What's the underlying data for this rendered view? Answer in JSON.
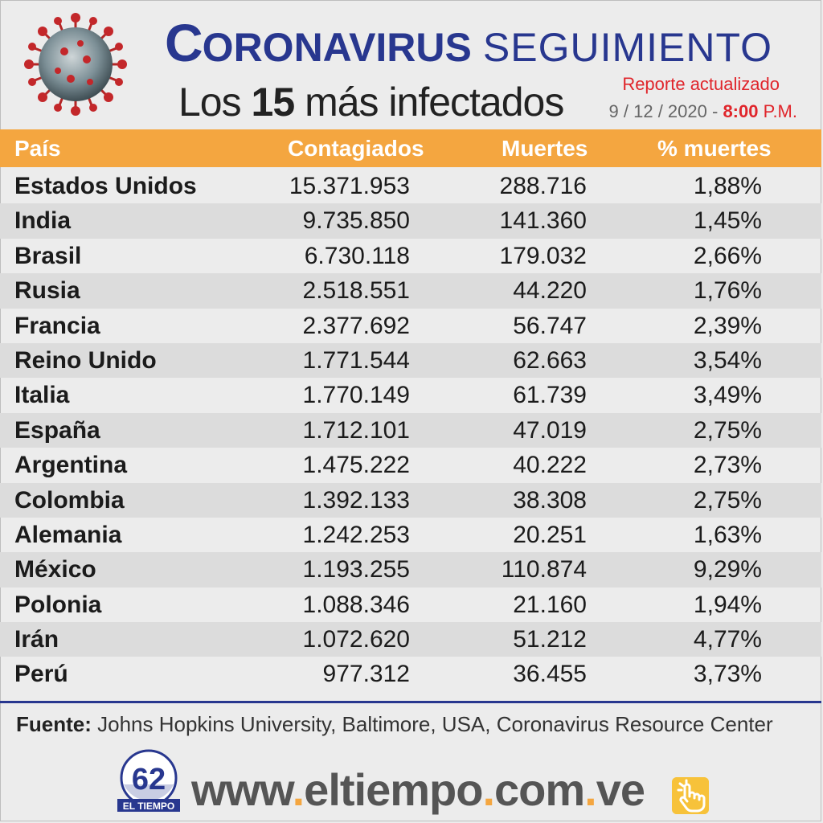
{
  "header": {
    "title_initial": "C",
    "title_rest": "ORONAVIRUS",
    "title_second": "SEGUIMIENTO",
    "subtitle_pre": "Los",
    "subtitle_num": "15",
    "subtitle_post": "más infectados",
    "report_label": "Reporte actualizado",
    "date": "9 / 12 / 2020 -",
    "time": "8:00",
    "ampm": "P.M."
  },
  "table": {
    "columns": [
      "País",
      "Contagiados",
      "Muertes",
      "% muertes"
    ],
    "rows": [
      [
        "Estados Unidos",
        "15.371.953",
        "288.716",
        "1,88%"
      ],
      [
        "India",
        "9.735.850",
        "141.360",
        "1,45%"
      ],
      [
        "Brasil",
        "6.730.118",
        "179.032",
        "2,66%"
      ],
      [
        "Rusia",
        "2.518.551",
        "44.220",
        "1,76%"
      ],
      [
        "Francia",
        "2.377.692",
        "56.747",
        "2,39%"
      ],
      [
        "Reino Unido",
        "1.771.544",
        "62.663",
        "3,54%"
      ],
      [
        "Italia",
        "1.770.149",
        "61.739",
        "3,49%"
      ],
      [
        "España",
        "1.712.101",
        "47.019",
        "2,75%"
      ],
      [
        "Argentina",
        "1.475.222",
        "40.222",
        "2,73%"
      ],
      [
        "Colombia",
        "1.392.133",
        "38.308",
        "2,75%"
      ],
      [
        "Alemania",
        "1.242.253",
        "20.251",
        "1,63%"
      ],
      [
        "México",
        "1.193.255",
        "110.874",
        "9,29%"
      ],
      [
        "Polonia",
        "1.088.346",
        "21.160",
        "1,94%"
      ],
      [
        "Irán",
        "1.072.620",
        "51.212",
        "4,77%"
      ],
      [
        "Perú",
        "977.312",
        "36.455",
        "3,73%"
      ]
    ]
  },
  "source": {
    "label": "Fuente:",
    "text": "Johns Hopkins University, Baltimore, USA, Coronavirus Resource Center"
  },
  "footer": {
    "logo_text": "EL TIEMPO",
    "logo_number": "62",
    "url_parts": [
      "www",
      ".",
      "eltiempo",
      ".",
      "com",
      ".",
      "ve"
    ]
  },
  "colors": {
    "accent": "#f4a640",
    "brand_blue": "#28378f",
    "report_red": "#e0252b"
  }
}
